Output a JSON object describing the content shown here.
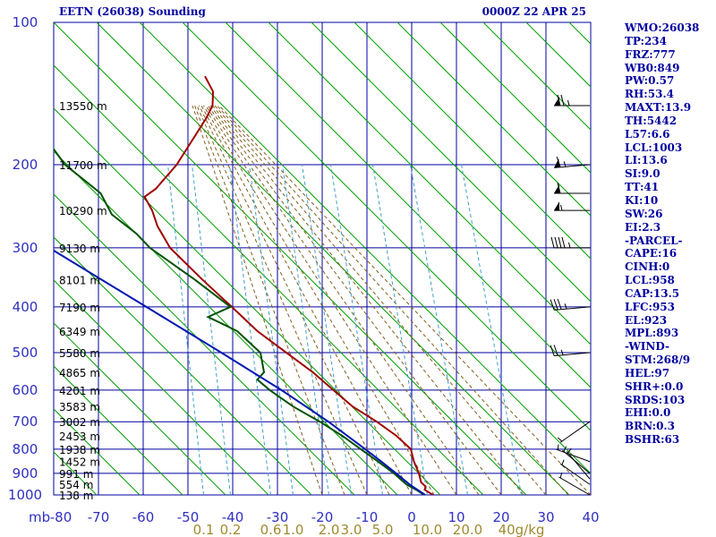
{
  "header": {
    "station": "EETN (26038) Sounding",
    "time": "0000Z 22 APR 25"
  },
  "stats": [
    "WMO:26038",
    "TP:234",
    "FRZ:777",
    "WB0:849",
    "PW:0.57",
    "RH:53.4",
    "MAXT:13.9",
    "TH:5442",
    "L57:6.6",
    "LCL:1003",
    "LI:13.6",
    "SI:9.0",
    "TT:41",
    "KI:10",
    "SW:26",
    "EI:2.3",
    "-PARCEL-",
    "CAPE:16",
    "CINH:0",
    "LCL:958",
    "CAP:13.5",
    "LFC:953",
    "EL:923",
    "MPL:893",
    "-WIND-",
    "STM:268/9",
    "HEL:97",
    "SHR+:0.0",
    "SRDS:103",
    "EHI:0.0",
    "BRN:0.3",
    "BSHR:63"
  ],
  "chart_data": {
    "type": "line",
    "title": "EETN (26038) Sounding",
    "subtitle": "0000Z 22 APR 25",
    "xlabel": "",
    "ylabel": "",
    "pressure_unit_label": "mb",
    "pressure_axis": {
      "scale": "log",
      "range_hpa": [
        1000,
        100
      ],
      "major_ticks": [
        100,
        200,
        300,
        400,
        500,
        600,
        700,
        800,
        900,
        1000
      ]
    },
    "temperature_axis": {
      "range_c": [
        -80,
        40
      ],
      "ticks": [
        -80,
        -70,
        -60,
        -50,
        -40,
        -30,
        -20,
        -10,
        0,
        10,
        20,
        30,
        40
      ],
      "tick_labels": [
        "-80",
        "-70",
        "-60",
        "-50",
        "-40",
        "-30",
        "-20",
        "-10",
        "0",
        "10",
        "20",
        "30",
        "40"
      ]
    },
    "mixing_ratio_labels": [
      {
        "text": "0.1",
        "t_c": -46.5
      },
      {
        "text": "0.2",
        "t_c": -40.5
      },
      {
        "text": "0.6",
        "t_c": -31.5
      },
      {
        "text": "1.0",
        "t_c": -26.5
      },
      {
        "text": "2.0",
        "t_c": -18.5
      },
      {
        "text": "3.0",
        "t_c": -13.5
      },
      {
        "text": "5.0",
        "t_c": -6.5
      },
      {
        "text": "10.0",
        "t_c": 3.5
      },
      {
        "text": "20.0",
        "t_c": 12.5
      },
      {
        "text": "40g/kg",
        "t_c": 24.5
      }
    ],
    "height_labels": [
      {
        "text": "13550 m",
        "p": 150
      },
      {
        "text": "11700 m",
        "p": 200
      },
      {
        "text": "10290 m",
        "p": 250
      },
      {
        "text": "9130 m",
        "p": 300
      },
      {
        "text": "8101 m",
        "p": 350
      },
      {
        "text": "7190 m",
        "p": 400
      },
      {
        "text": "6349 m",
        "p": 450
      },
      {
        "text": "5580 m",
        "p": 500
      },
      {
        "text": "4865 m",
        "p": 550
      },
      {
        "text": "4201 m",
        "p": 600
      },
      {
        "text": "3583 m",
        "p": 650
      },
      {
        "text": "3002 m",
        "p": 700
      },
      {
        "text": "2453 m",
        "p": 750
      },
      {
        "text": "1938 m",
        "p": 800
      },
      {
        "text": "1452 m",
        "p": 850
      },
      {
        "text": "991 m",
        "p": 900
      },
      {
        "text": "554 m",
        "p": 950
      },
      {
        "text": "138 m",
        "p": 1000
      }
    ],
    "series": [
      {
        "color": "#a00000",
        "points": [
          {
            "p": 1003,
            "t": 5.0
          },
          {
            "p": 975,
            "t": 2.9
          },
          {
            "p": 960,
            "t": 3.1
          },
          {
            "p": 940,
            "t": 2.1
          },
          {
            "p": 900,
            "t": 1.6
          },
          {
            "p": 850,
            "t": 0.5
          },
          {
            "p": 800,
            "t": -0.2
          },
          {
            "p": 750,
            "t": -3.4
          },
          {
            "p": 700,
            "t": -7.8
          },
          {
            "p": 650,
            "t": -13.2
          },
          {
            "p": 600,
            "t": -17.5
          },
          {
            "p": 570,
            "t": -20.2
          },
          {
            "p": 550,
            "t": -22.1
          },
          {
            "p": 500,
            "t": -28.0
          },
          {
            "p": 450,
            "t": -34.5
          },
          {
            "p": 400,
            "t": -40.2
          },
          {
            "p": 350,
            "t": -46.8
          },
          {
            "p": 300,
            "t": -54.0
          },
          {
            "p": 270,
            "t": -56.8
          },
          {
            "p": 250,
            "t": -58.0
          },
          {
            "p": 234,
            "t": -59.7
          },
          {
            "p": 225,
            "t": -57.2
          },
          {
            "p": 200,
            "t": -52.5
          },
          {
            "p": 160,
            "t": -46.0
          },
          {
            "p": 150,
            "t": -44.5
          },
          {
            "p": 140,
            "t": -44.4
          },
          {
            "p": 130,
            "t": -46.2
          }
        ]
      },
      {
        "color": "#005000",
        "points": [
          {
            "p": 1003,
            "t": 3.0
          },
          {
            "p": 975,
            "t": 1.0
          },
          {
            "p": 950,
            "t": -1.2
          },
          {
            "p": 900,
            "t": -4.0
          },
          {
            "p": 850,
            "t": -7.5
          },
          {
            "p": 800,
            "t": -11.4
          },
          {
            "p": 750,
            "t": -15.5
          },
          {
            "p": 700,
            "t": -20.5
          },
          {
            "p": 650,
            "t": -26.5
          },
          {
            "p": 600,
            "t": -31.7
          },
          {
            "p": 570,
            "t": -34.5
          },
          {
            "p": 550,
            "t": -33.0
          },
          {
            "p": 500,
            "t": -33.8
          },
          {
            "p": 450,
            "t": -39.0
          },
          {
            "p": 420,
            "t": -45.5
          },
          {
            "p": 400,
            "t": -40.5
          },
          {
            "p": 350,
            "t": -48.5
          },
          {
            "p": 300,
            "t": -58.5
          },
          {
            "p": 280,
            "t": -61.5
          },
          {
            "p": 255,
            "t": -67.0
          },
          {
            "p": 230,
            "t": -69.5
          },
          {
            "p": 200,
            "t": -77.5
          },
          {
            "p": 180,
            "t": -81.0
          }
        ]
      },
      {
        "color": "#0018b0",
        "points": [
          {
            "p": 1000,
            "t": 3.0
          },
          {
            "p": 950,
            "t": -0.5
          },
          {
            "p": 900,
            "t": -3.5
          },
          {
            "p": 850,
            "t": -6.8
          },
          {
            "p": 800,
            "t": -10.4
          },
          {
            "p": 700,
            "t": -18.6
          },
          {
            "p": 600,
            "t": -29.1
          },
          {
            "p": 500,
            "t": -42.5
          },
          {
            "p": 400,
            "t": -59.3
          },
          {
            "p": 300,
            "t": -81.0
          }
        ]
      }
    ],
    "winds": [
      {
        "p": 150,
        "dir_deg": 270,
        "speed_kt": 75
      },
      {
        "p": 200,
        "dir_deg": 265,
        "speed_kt": 65
      },
      {
        "p": 230,
        "dir_deg": 270,
        "speed_kt": 60
      },
      {
        "p": 250,
        "dir_deg": 270,
        "speed_kt": 55
      },
      {
        "p": 300,
        "dir_deg": 270,
        "speed_kt": 45
      },
      {
        "p": 400,
        "dir_deg": 265,
        "speed_kt": 35
      },
      {
        "p": 500,
        "dir_deg": 265,
        "speed_kt": 25
      },
      {
        "p": 700,
        "dir_deg": 235,
        "speed_kt": 5
      },
      {
        "p": 850,
        "dir_deg": 290,
        "speed_kt": 5
      },
      {
        "p": 900,
        "dir_deg": 310,
        "speed_kt": 5
      },
      {
        "p": 925,
        "dir_deg": 320,
        "speed_kt": 5
      },
      {
        "p": 950,
        "dir_deg": 305,
        "speed_kt": 5
      },
      {
        "p": 1000,
        "dir_deg": 300,
        "speed_kt": 5
      }
    ],
    "grid": true,
    "legend": "none"
  }
}
